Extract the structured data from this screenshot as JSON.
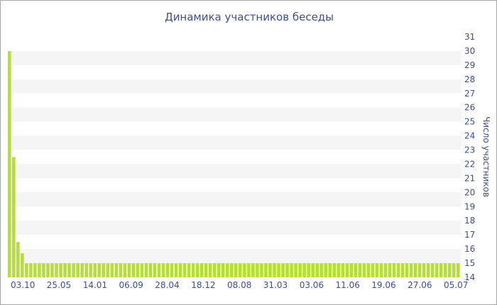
{
  "chart_data": {
    "type": "bar",
    "title": "Динамика участников беседы",
    "xlabel": "",
    "ylabel": "Число участников",
    "ylim": [
      14,
      31
    ],
    "y_ticks": [
      14,
      15,
      16,
      17,
      18,
      19,
      20,
      21,
      22,
      23,
      24,
      25,
      26,
      27,
      28,
      29,
      30,
      31
    ],
    "x_tick_labels": [
      "03.10",
      "25.05",
      "14.01",
      "06.09",
      "28.04",
      "18.12",
      "08.08",
      "31.03",
      "03.06",
      "11.06",
      "19.06",
      "27.06",
      "05.07"
    ],
    "bar_color": "#b5e02e",
    "band_color": "#f5f5f5",
    "grid": "alternating horizontal bands",
    "y_axis_position": "right",
    "series": [
      {
        "values": [
          30,
          22.5,
          16.5,
          15.7,
          15,
          15,
          15,
          15,
          15,
          15,
          15,
          15,
          15,
          15,
          15,
          15,
          15,
          15,
          15,
          15,
          15,
          15,
          15,
          15,
          15,
          15,
          15,
          15,
          15,
          15,
          15,
          15,
          15,
          15,
          15,
          15,
          15,
          15,
          15,
          15,
          15,
          15,
          15,
          15,
          15,
          15,
          15,
          15,
          15,
          15,
          15,
          15,
          15,
          15,
          15,
          15,
          15,
          15,
          15,
          15,
          15,
          15,
          15,
          15,
          15,
          15,
          15,
          15,
          15,
          15,
          15,
          15,
          15,
          15,
          15,
          15,
          15,
          15,
          15,
          15,
          15,
          15,
          15,
          15,
          15,
          15,
          15,
          15,
          15,
          15,
          15,
          15,
          15,
          15,
          15,
          15,
          15,
          15,
          15,
          15,
          15,
          15,
          15,
          15,
          15,
          15
        ]
      }
    ]
  }
}
